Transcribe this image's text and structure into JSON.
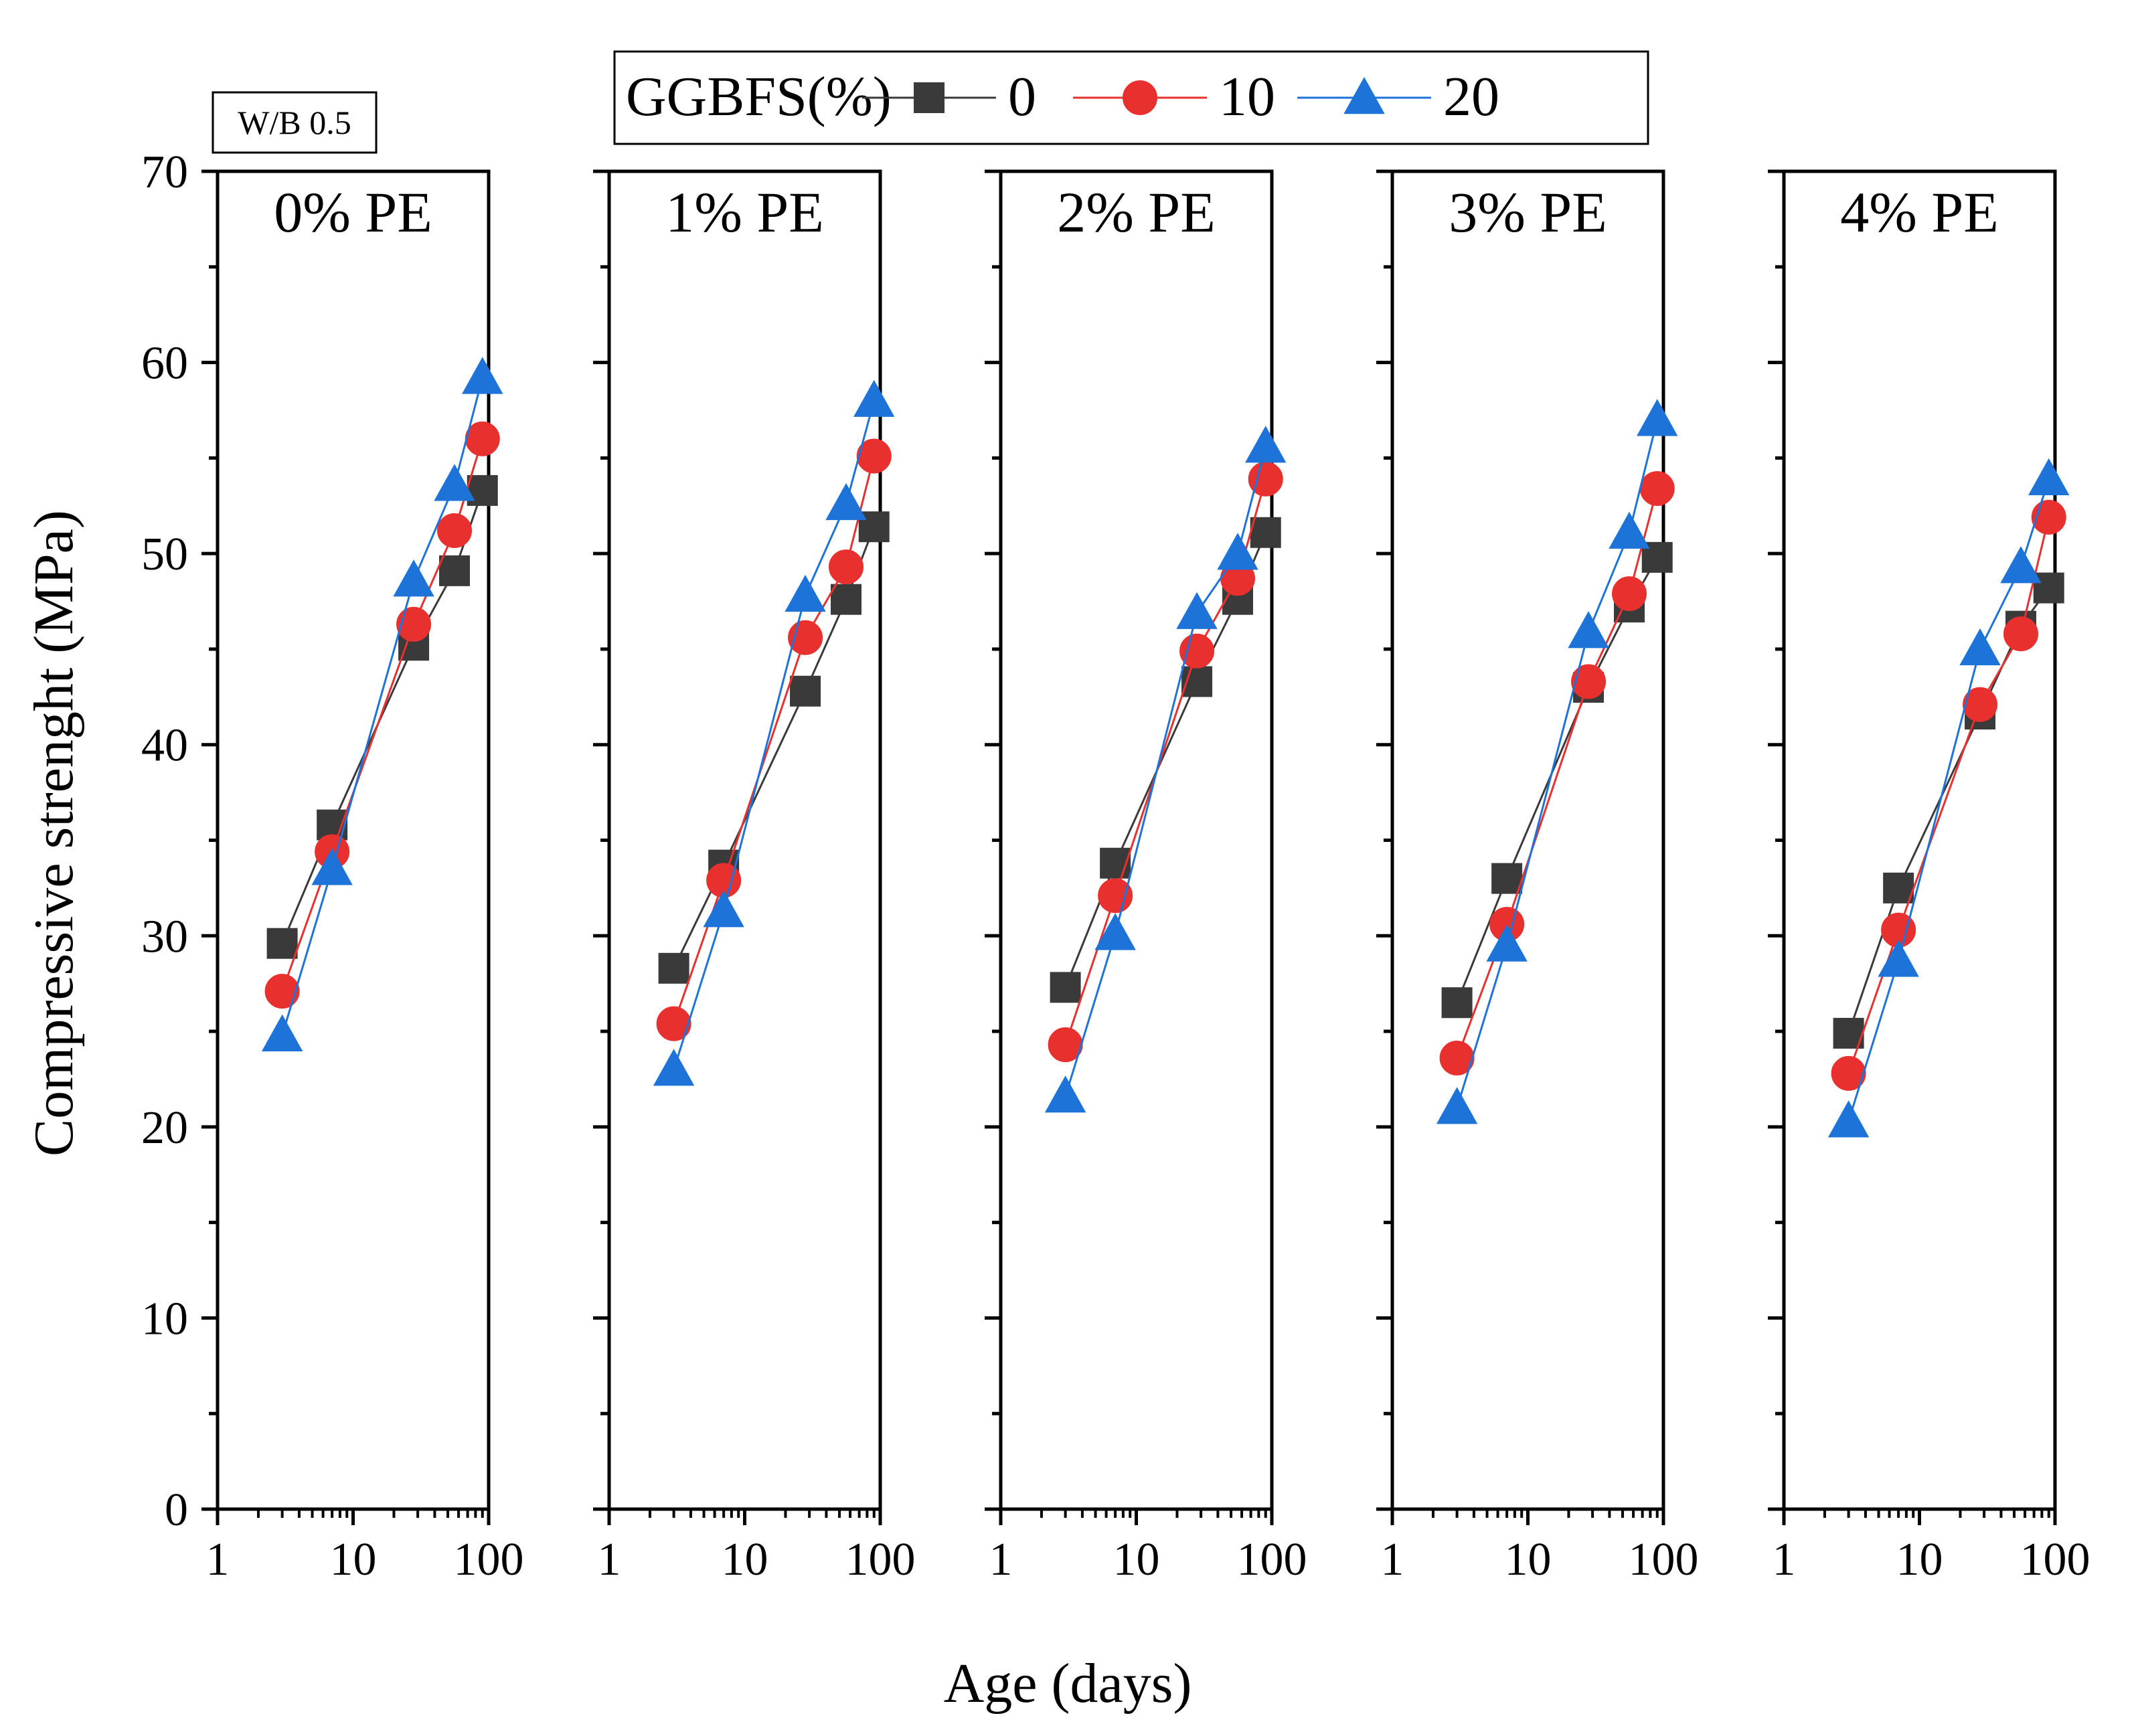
{
  "figure_note": "W/B 0.5",
  "legend": {
    "title": "GGBFS(%)",
    "entries": [
      {
        "label": "0",
        "color": "#3a3a3a",
        "marker": "square"
      },
      {
        "label": "10",
        "color": "#e8302f",
        "marker": "circle"
      },
      {
        "label": "20",
        "color": "#1e73d8",
        "marker": "triangle"
      }
    ]
  },
  "chart_data": {
    "type": "line",
    "xlabel": "Age (days)",
    "ylabel": "Compressive strenght (MPa)",
    "xscale": "log",
    "xlim": [
      1,
      100
    ],
    "ylim": [
      0,
      70
    ],
    "x_ticks": [
      "1",
      "10",
      "100"
    ],
    "y_ticks": [
      "0",
      "10",
      "20",
      "30",
      "40",
      "50",
      "60",
      "70"
    ],
    "x": [
      3,
      7,
      28,
      56,
      90
    ],
    "panels": [
      {
        "title": "0% PE",
        "series": [
          {
            "name": "0",
            "values": [
              29.6,
              35.8,
              45.2,
              49.1,
              53.3
            ]
          },
          {
            "name": "10",
            "values": [
              27.1,
              34.4,
              46.3,
              51.2,
              56.0
            ]
          },
          {
            "name": "20",
            "values": [
              24.8,
              33.5,
              48.6,
              53.6,
              59.2
            ]
          }
        ]
      },
      {
        "title": "1% PE",
        "series": [
          {
            "name": "0",
            "values": [
              28.3,
              33.7,
              42.8,
              47.6,
              51.4
            ]
          },
          {
            "name": "10",
            "values": [
              25.4,
              32.9,
              45.6,
              49.3,
              55.1
            ]
          },
          {
            "name": "20",
            "values": [
              23.0,
              31.3,
              47.8,
              52.6,
              58.0
            ]
          }
        ]
      },
      {
        "title": "2% PE",
        "series": [
          {
            "name": "0",
            "values": [
              27.3,
              33.8,
              43.3,
              47.6,
              51.1
            ]
          },
          {
            "name": "10",
            "values": [
              24.3,
              32.1,
              44.9,
              48.7,
              53.9
            ]
          },
          {
            "name": "20",
            "values": [
              21.6,
              30.1,
              46.9,
              50.0,
              55.6
            ]
          }
        ]
      },
      {
        "title": "3% PE",
        "series": [
          {
            "name": "0",
            "values": [
              26.5,
              33.0,
              43.0,
              47.2,
              49.8
            ]
          },
          {
            "name": "10",
            "values": [
              23.6,
              30.6,
              43.3,
              47.9,
              53.4
            ]
          },
          {
            "name": "20",
            "values": [
              21.0,
              29.5,
              45.9,
              51.1,
              57.0
            ]
          }
        ]
      },
      {
        "title": "4% PE",
        "series": [
          {
            "name": "0",
            "values": [
              24.9,
              32.5,
              41.6,
              46.2,
              48.2
            ]
          },
          {
            "name": "10",
            "values": [
              22.8,
              30.3,
              42.1,
              45.8,
              51.9
            ]
          },
          {
            "name": "20",
            "values": [
              20.3,
              28.7,
              45.0,
              49.3,
              53.9
            ]
          }
        ]
      }
    ]
  }
}
